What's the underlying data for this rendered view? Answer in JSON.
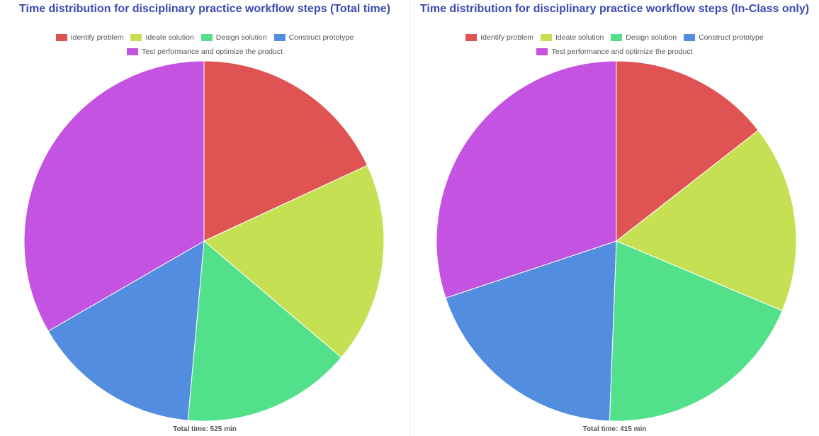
{
  "chart_data": [
    {
      "type": "pie",
      "title": "Time distribution for disciplinary practice workflow steps (Total time)",
      "categories": [
        "Identify problem",
        "Ideate solution",
        "Design solution",
        "Construct prototype",
        "Test performance and optimize the product"
      ],
      "values": [
        95,
        95,
        80,
        80,
        175
      ],
      "colors": [
        "#e05353",
        "#c5e153",
        "#53e08a",
        "#538de0",
        "#c353e0"
      ],
      "footer": "Total time: 525 min"
    },
    {
      "type": "pie",
      "title": "Time distribution for disciplinary practice workflow steps (In-Class only)",
      "categories": [
        "Identify problem",
        "Ideate solution",
        "Design solution",
        "Construct prototype",
        "Test performance and optimize the product"
      ],
      "values": [
        60,
        70,
        80,
        80,
        125
      ],
      "colors": [
        "#e05353",
        "#c5e153",
        "#53e08a",
        "#538de0",
        "#c353e0"
      ],
      "footer": "Total time: 415 min"
    }
  ]
}
